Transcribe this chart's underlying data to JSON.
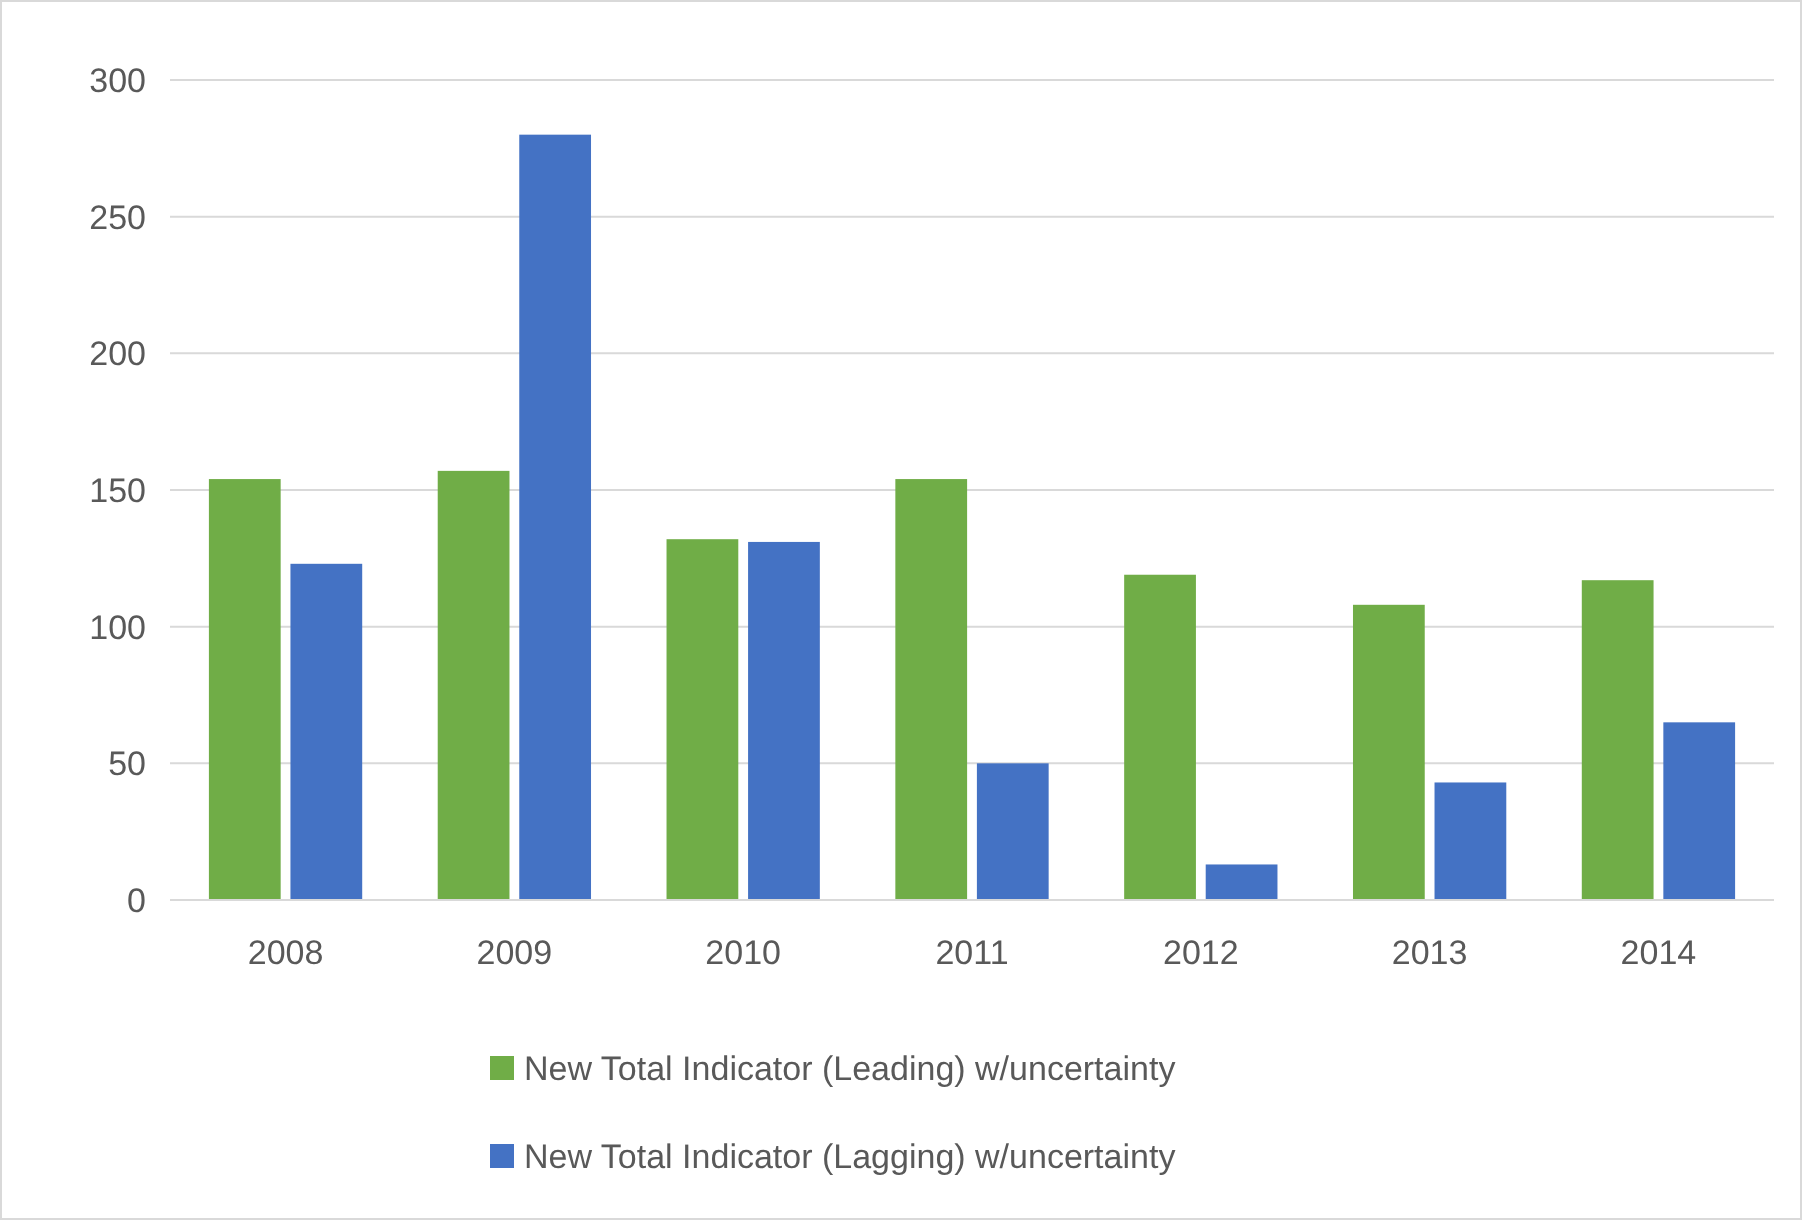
{
  "chart_data": {
    "type": "bar",
    "categories": [
      "2008",
      "2009",
      "2010",
      "2011",
      "2012",
      "2013",
      "2014"
    ],
    "series": [
      {
        "name": "New Total Indicator (Leading) w/uncertainty",
        "color": "#70ad47",
        "values": [
          154,
          157,
          132,
          154,
          119,
          108,
          117
        ]
      },
      {
        "name": "New Total Indicator (Lagging) w/uncertainty",
        "color": "#4472c4",
        "values": [
          123,
          280,
          131,
          50,
          13,
          43,
          65
        ]
      }
    ],
    "ylim": [
      0,
      300
    ],
    "yticks": [
      0,
      50,
      100,
      150,
      200,
      250,
      300
    ],
    "grid": "y",
    "legend": "bottom"
  }
}
